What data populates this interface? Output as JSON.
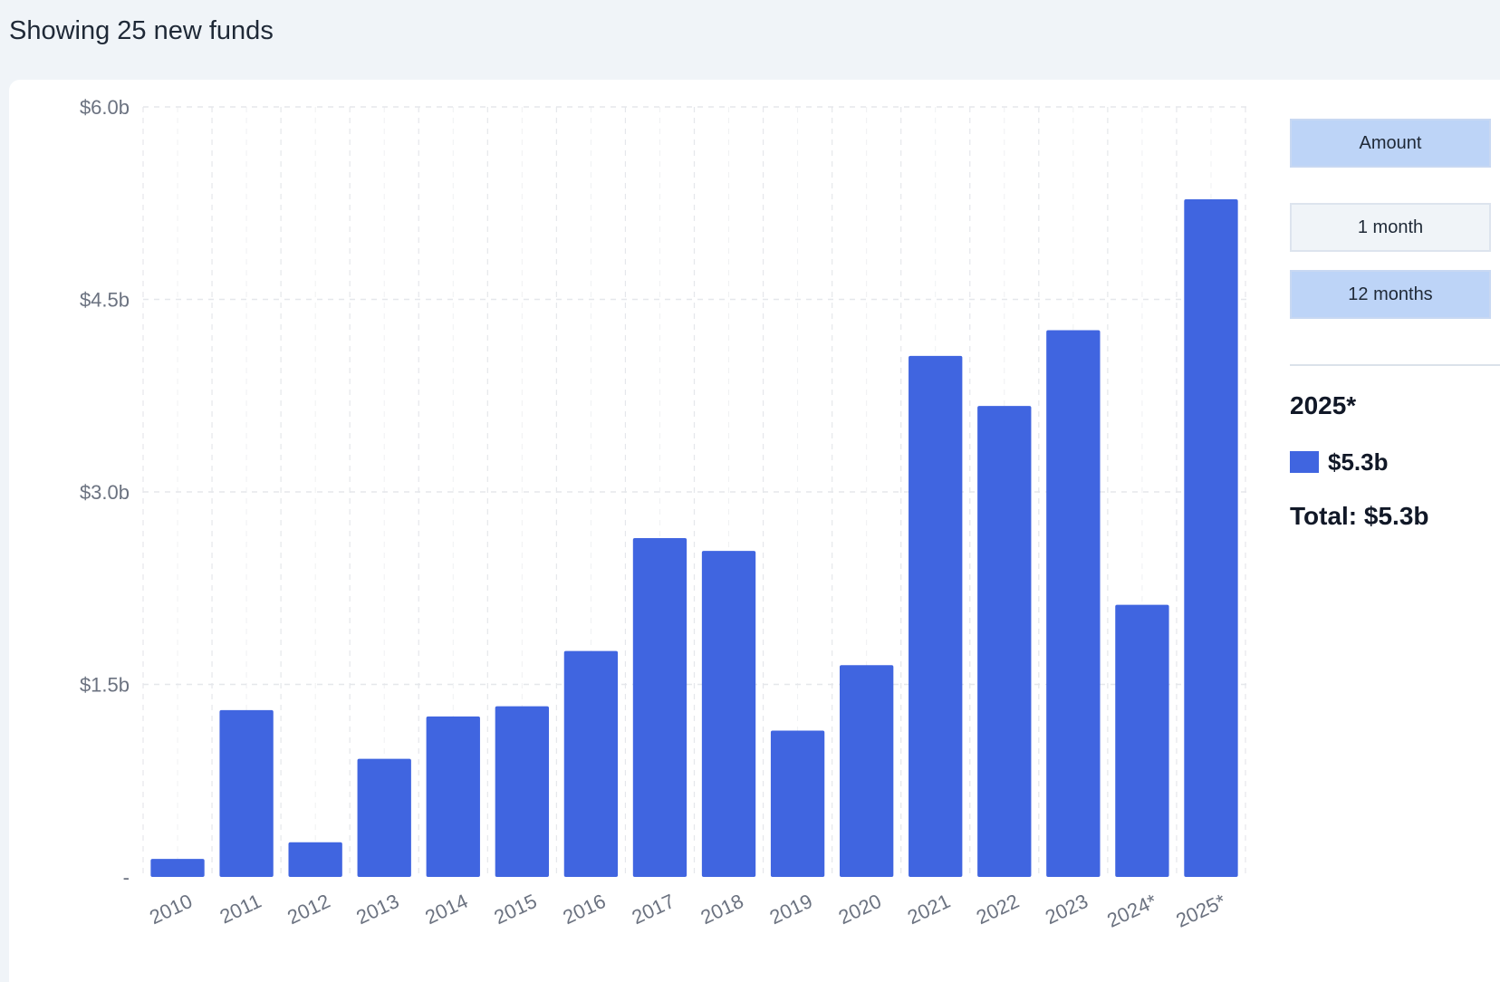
{
  "header": {
    "text": "Showing 25 new funds"
  },
  "controls": {
    "amount_label": "Amount",
    "one_month_label": "1 month",
    "twelve_months_label": "12 months"
  },
  "selection": {
    "year": "2025*",
    "value": "$5.3b",
    "total": "Total: $5.3b"
  },
  "colors": {
    "bar": "#4065e0",
    "grid": "#e5e7eb"
  },
  "chart_data": {
    "type": "bar",
    "categories": [
      "2010",
      "2011",
      "2012",
      "2013",
      "2014",
      "2015",
      "2016",
      "2017",
      "2018",
      "2019",
      "2020",
      "2021",
      "2022",
      "2023",
      "2024*",
      "2025*"
    ],
    "values": [
      0.14,
      1.3,
      0.27,
      0.92,
      1.25,
      1.33,
      1.76,
      2.64,
      2.54,
      1.14,
      1.65,
      4.06,
      3.67,
      4.26,
      2.12,
      5.28
    ],
    "ylim": [
      0,
      6.0
    ],
    "yticks": [
      0,
      1.5,
      3.0,
      4.5,
      6.0
    ],
    "ytick_labels": [
      "-",
      "$1.5b",
      "$3.0b",
      "$4.5b",
      "$6.0b"
    ],
    "grid": true,
    "title": "",
    "xlabel": "",
    "ylabel": ""
  }
}
